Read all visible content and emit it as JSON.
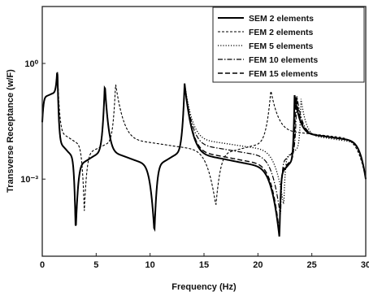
{
  "chart_data": {
    "type": "line",
    "xlabel": "Frequency (Hz)",
    "ylabel": "Transverse Receptance (w/F)",
    "xlim": [
      0,
      30
    ],
    "ylim": [
      1e-05,
      30
    ],
    "yscale": "log",
    "x_ticks": [
      0,
      5,
      10,
      15,
      20,
      25,
      30
    ],
    "y_ticks": [
      {
        "value": 1,
        "label": "10⁰"
      },
      {
        "value": 0.001,
        "label": "10⁻³"
      }
    ],
    "legend_position": "top-right",
    "grid": false,
    "series": [
      {
        "name": "SEM 2 elements",
        "style": "solid",
        "resonances": [
          1.4,
          5.8,
          13.2,
          23.4
        ],
        "antiresonances": [
          3.1,
          10.4,
          22.0
        ],
        "points": [
          [
            0,
            0.03
          ],
          [
            1.4,
            0.8
          ],
          [
            3.1,
            4e-05
          ],
          [
            5.8,
            0.3
          ],
          [
            10.4,
            4e-05
          ],
          [
            13.2,
            0.3
          ],
          [
            22.0,
            3e-05
          ],
          [
            23.4,
            0.15
          ],
          [
            30,
            0.001
          ]
        ]
      },
      {
        "name": "FEM 2 elements",
        "style": "dashed-fine",
        "resonances": [
          1.4,
          6.8,
          21.2
        ],
        "antiresonances": [
          3.9,
          16.1
        ],
        "points": [
          [
            0,
            0.03
          ],
          [
            1.4,
            0.8
          ],
          [
            3.9,
            0.00015
          ],
          [
            6.8,
            0.3
          ],
          [
            16.1,
            0.0002
          ],
          [
            21.2,
            0.2
          ],
          [
            30,
            0.001
          ]
        ]
      },
      {
        "name": "FEM 5 elements",
        "style": "dotted",
        "resonances": [
          1.4,
          5.8,
          13.2,
          24.0
        ],
        "antiresonances": [
          3.1,
          10.4,
          22.4
        ],
        "points": [
          [
            0,
            0.03
          ],
          [
            1.4,
            0.8
          ],
          [
            3.1,
            4e-05
          ],
          [
            5.8,
            0.3
          ],
          [
            10.4,
            4e-05
          ],
          [
            13.2,
            0.3
          ],
          [
            22.4,
            0.0002
          ],
          [
            24.0,
            0.12
          ],
          [
            30,
            0.001
          ]
        ]
      },
      {
        "name": "FEM 10 elements",
        "style": "dash-dot",
        "resonances": [
          1.4,
          5.8,
          13.2,
          23.6
        ],
        "antiresonances": [
          3.1,
          10.4,
          22.1
        ],
        "points": [
          [
            0,
            0.03
          ],
          [
            1.4,
            0.8
          ],
          [
            3.1,
            4e-05
          ],
          [
            5.8,
            0.3
          ],
          [
            10.4,
            4e-05
          ],
          [
            13.2,
            0.3
          ],
          [
            22.1,
            0.0001
          ],
          [
            23.6,
            0.15
          ],
          [
            30,
            0.001
          ]
        ]
      },
      {
        "name": "FEM 15 elements",
        "style": "dashed",
        "resonances": [
          1.4,
          5.8,
          13.2,
          23.5
        ],
        "antiresonances": [
          3.1,
          10.4,
          22.0
        ],
        "points": [
          [
            0,
            0.03
          ],
          [
            1.4,
            0.8
          ],
          [
            3.1,
            4e-05
          ],
          [
            5.8,
            0.3
          ],
          [
            10.4,
            4e-05
          ],
          [
            13.2,
            0.3
          ],
          [
            22.0,
            4e-05
          ],
          [
            23.5,
            0.15
          ],
          [
            30,
            0.001
          ]
        ]
      }
    ]
  }
}
